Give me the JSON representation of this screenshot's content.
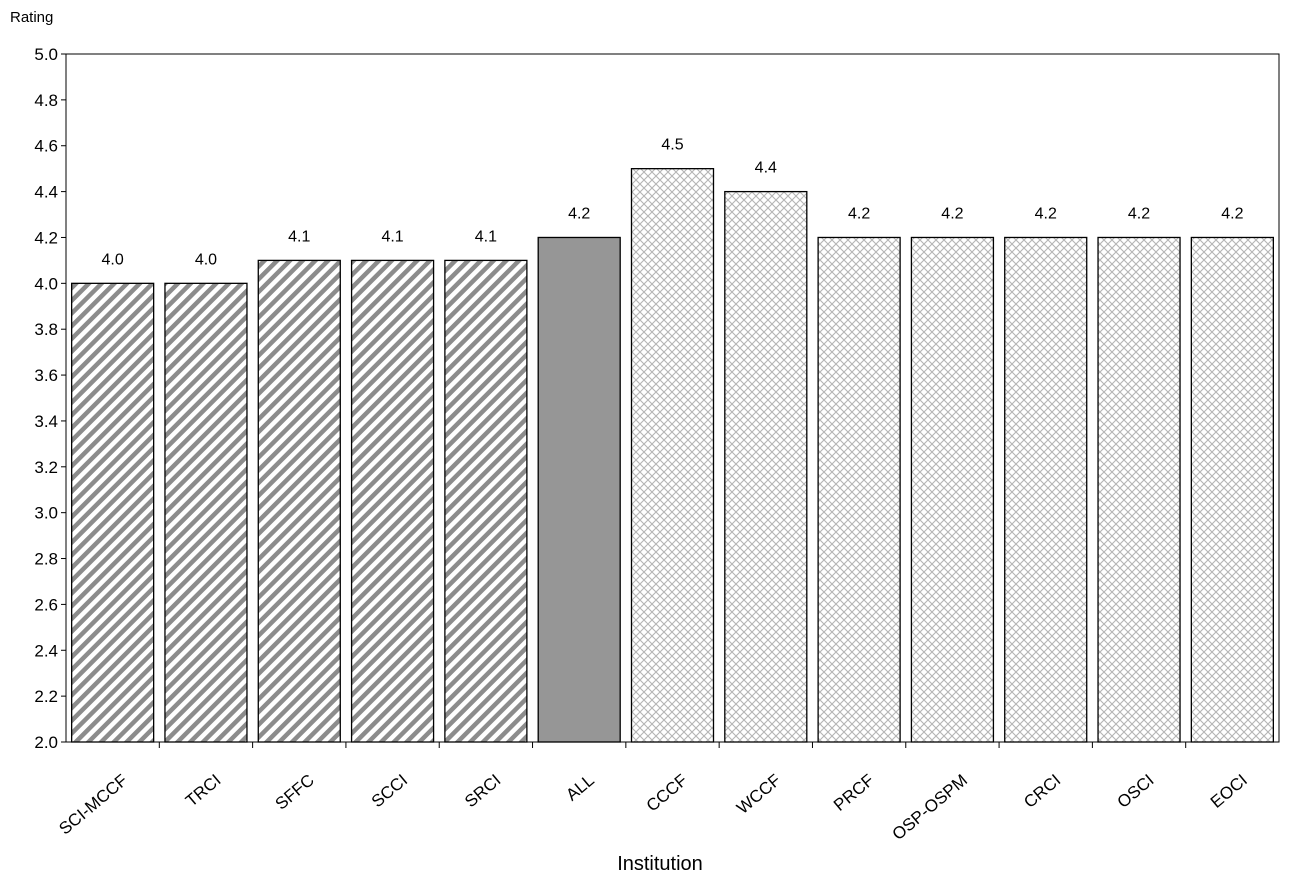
{
  "chart_data": {
    "type": "bar",
    "title": "",
    "xlabel": "Institution",
    "ylabel": "Rating",
    "ylim": [
      2.0,
      5.0
    ],
    "ytick_step": 0.2,
    "grid": false,
    "categories": [
      "SCI-MCCF",
      "TRCI",
      "SFFC",
      "SCCI",
      "SRCI",
      "ALL",
      "CCCF",
      "WCCF",
      "PRCF",
      "OSP-OSPM",
      "CRCI",
      "OSCI",
      "EOCI"
    ],
    "values": [
      4.0,
      4.0,
      4.1,
      4.1,
      4.1,
      4.2,
      4.5,
      4.4,
      4.2,
      4.2,
      4.2,
      4.2,
      4.2
    ],
    "value_labels": [
      "4.0",
      "4.0",
      "4.1",
      "4.1",
      "4.1",
      "4.2",
      "4.5",
      "4.4",
      "4.2",
      "4.2",
      "4.2",
      "4.2",
      "4.2"
    ],
    "bar_styles": [
      "diagonal",
      "diagonal",
      "diagonal",
      "diagonal",
      "diagonal",
      "solid",
      "crosshatch",
      "crosshatch",
      "crosshatch",
      "crosshatch",
      "crosshatch",
      "crosshatch",
      "crosshatch"
    ],
    "colors": {
      "diagonal": "#8c8c8c",
      "solid": "#969696",
      "crosshatch": "#b4b4b4"
    }
  }
}
